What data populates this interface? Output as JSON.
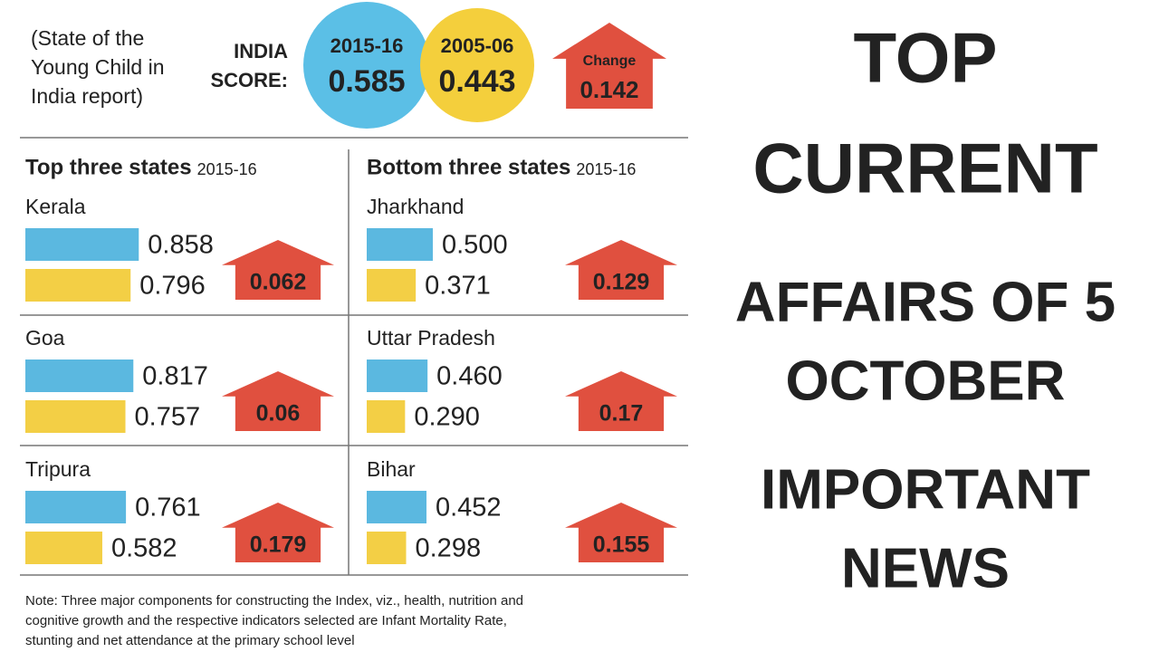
{
  "source": [
    "(State of the",
    "Young Child in",
    "India report)"
  ],
  "india_score": {
    "label": [
      "INDIA",
      "SCORE:"
    ],
    "circles": [
      {
        "year": "2015-16",
        "value": 0.585
      },
      {
        "year": "2005-06",
        "value": 0.443
      }
    ],
    "change": {
      "label": "Change",
      "value": 0.142
    }
  },
  "panels": [
    {
      "title": "Top three states",
      "year": "2015-16",
      "states": [
        {
          "name": "Kerala",
          "values": [
            0.858,
            0.796
          ],
          "change": 0.062
        },
        {
          "name": "Goa",
          "values": [
            0.817,
            0.757
          ],
          "change": 0.06
        },
        {
          "name": "Tripura",
          "values": [
            0.761,
            0.582
          ],
          "change": 0.179
        }
      ]
    },
    {
      "title": "Bottom three states",
      "year": "2015-16",
      "states": [
        {
          "name": "Jharkhand",
          "values": [
            0.5,
            0.371
          ],
          "value_labels": [
            "0.500",
            "0.371"
          ],
          "change": 0.129
        },
        {
          "name": "Uttar Pradesh",
          "values": [
            0.46,
            0.29
          ],
          "value_labels": [
            "0.460",
            "0.290"
          ],
          "change": 0.17
        },
        {
          "name": "Bihar",
          "values": [
            0.452,
            0.298
          ],
          "change": 0.155
        }
      ]
    }
  ],
  "note": [
    "Note: Three major components for constructing the Index, viz., health, nutrition and",
    "cognitive growth and the respective indicators selected are Infant Mortality Rate,",
    "stunting and net attendance at the primary school level"
  ],
  "headline": [
    "TOP",
    "CURRENT",
    "AFFAIRS OF 5",
    "OCTOBER",
    "IMPORTANT",
    "NEWS"
  ]
}
